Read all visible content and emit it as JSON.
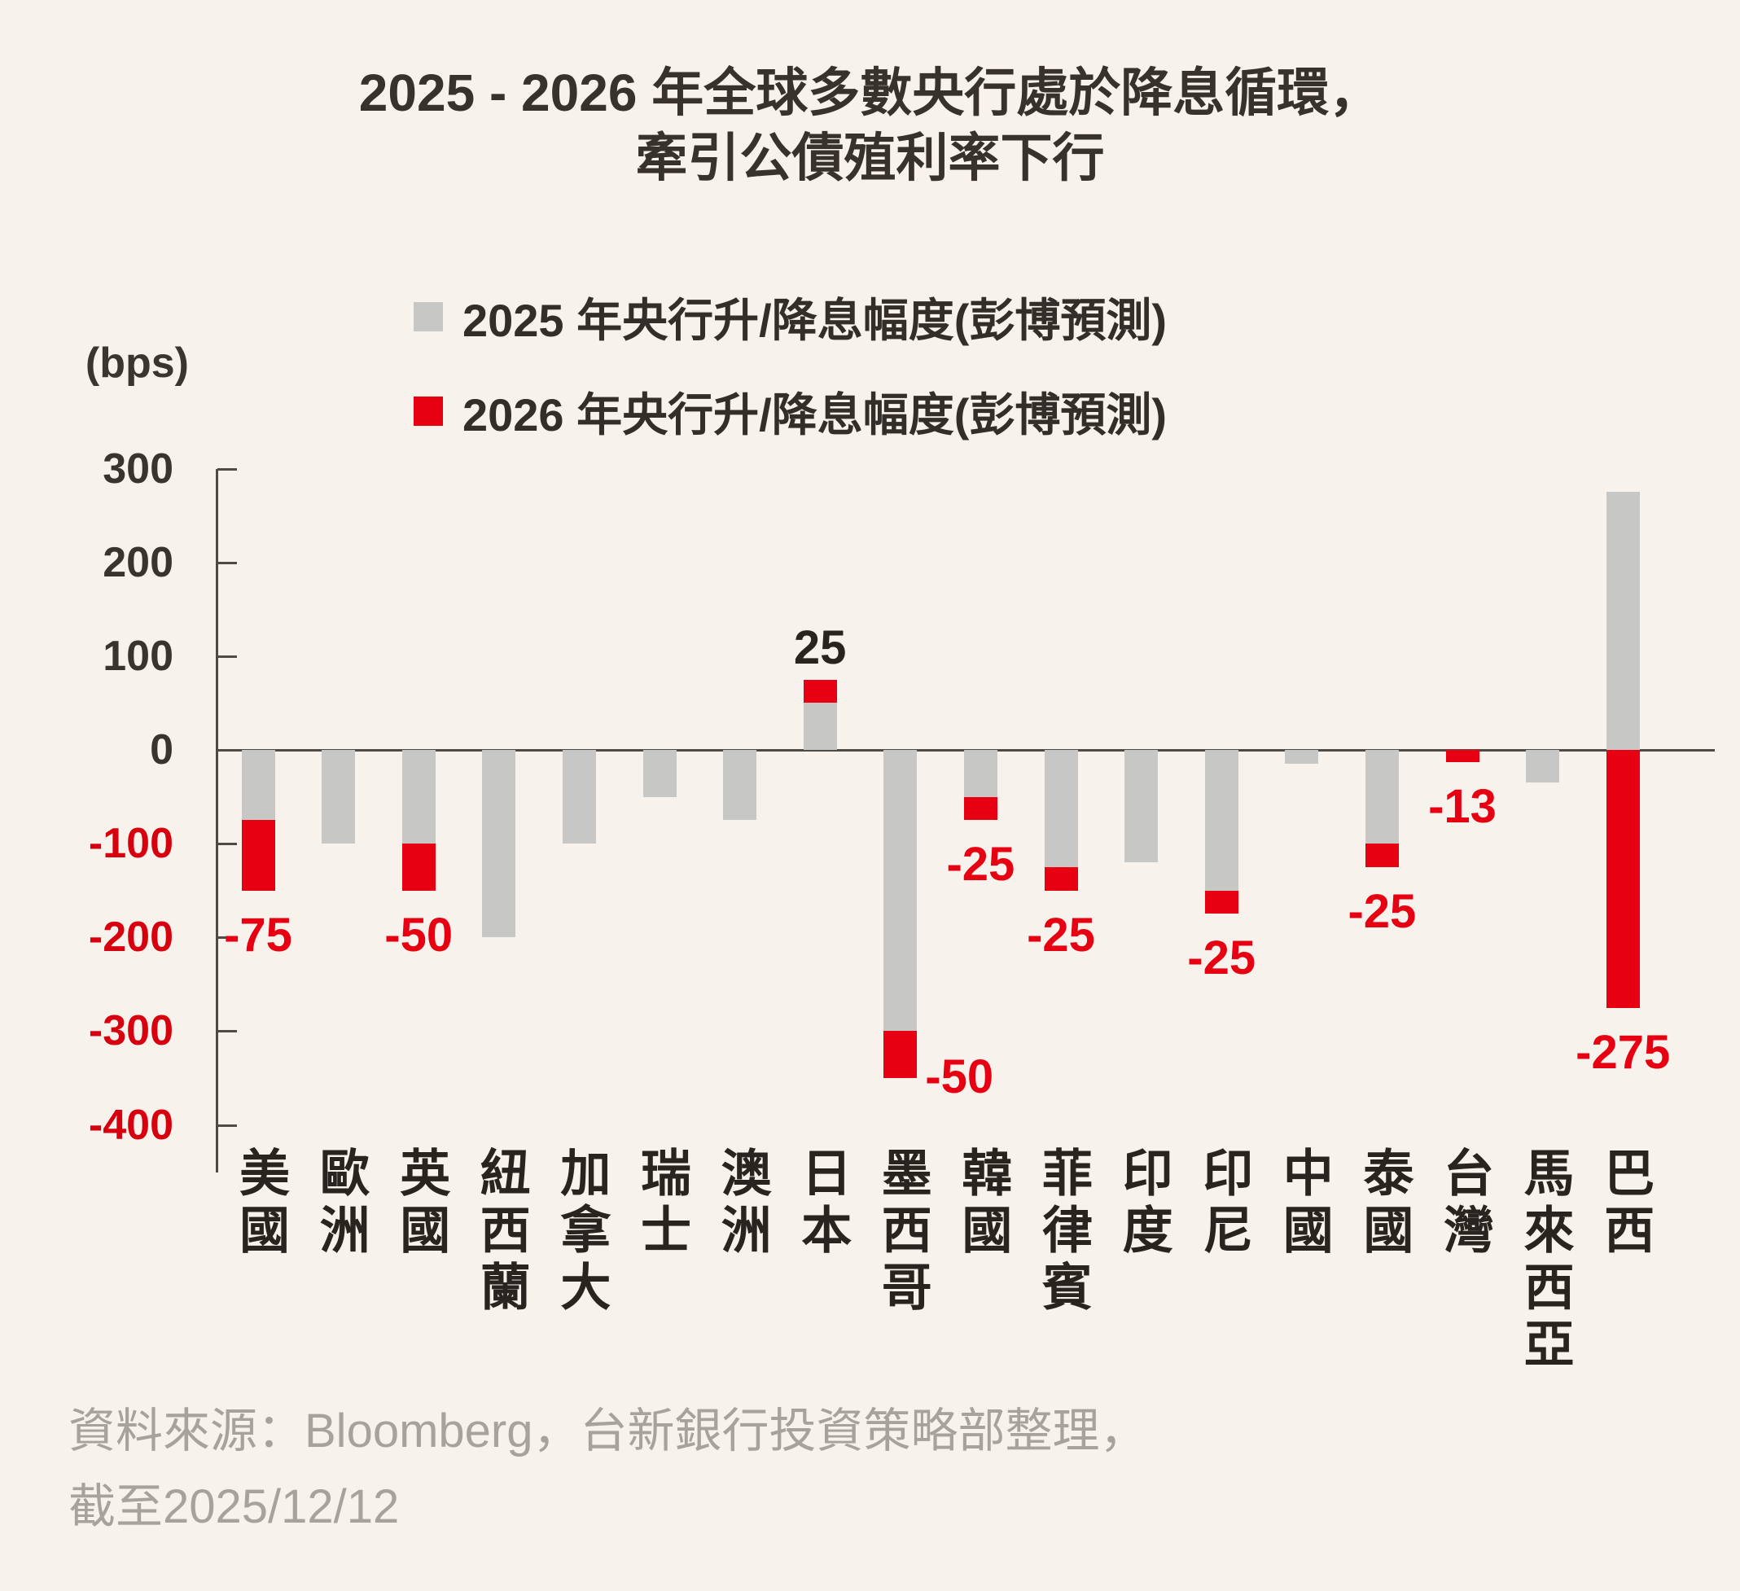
{
  "title": {
    "line1": "2025 - 2026 年全球多數央行處於降息循環，",
    "line2": "牽引公債殖利率下行"
  },
  "legend": {
    "item_2025": "2025 年央行升/降息幅度(彭博預測)",
    "item_2026": "2026 年央行升/降息幅度(彭博預測)"
  },
  "y_axis": {
    "unit_label": "(bps)",
    "ticks": [
      300,
      200,
      100,
      0,
      -100,
      -200,
      -300,
      -400
    ],
    "positive_label_color": "#3a3430",
    "negative_label_color": "#d7000f"
  },
  "colors": {
    "background": "#f8f2ec",
    "bar_2025_gray": "#c7c7c6",
    "bar_2026_red": "#e60012",
    "axis_line": "#4e4a46",
    "dark_text": "#38322d",
    "source_text": "#a7a29c"
  },
  "chart_data": {
    "type": "bar",
    "stacked": true,
    "grid": false,
    "legend_position": "top",
    "ylabel": "(bps)",
    "ylim": [
      -400,
      300
    ],
    "categories": [
      "美國",
      "歐洲",
      "英國",
      "紐西蘭",
      "加拿大",
      "瑞士",
      "澳洲",
      "日本",
      "墨西哥",
      "韓國",
      "菲律賓",
      "印度",
      "印尼",
      "中國",
      "泰國",
      "台灣",
      "馬來西亞",
      "巴西"
    ],
    "series": [
      {
        "name": "2025 年央行升/降息幅度(彭博預測)",
        "color": "#c7c7c6",
        "values": [
          -75,
          -100,
          -100,
          -200,
          -100,
          -50,
          -75,
          50,
          -300,
          -50,
          -125,
          -120,
          -150,
          -15,
          -100,
          0,
          -35,
          275
        ]
      },
      {
        "name": "2026 年央行升/降息幅度(彭博預測)",
        "color": "#e60012",
        "values": [
          -75,
          0,
          -50,
          0,
          0,
          0,
          0,
          25,
          -50,
          -25,
          -25,
          0,
          -25,
          0,
          -25,
          -13,
          0,
          -275
        ]
      }
    ],
    "data_labels": [
      {
        "index": 0,
        "text": "-75",
        "placement": "below",
        "color": "#e60012"
      },
      {
        "index": 2,
        "text": "-50",
        "placement": "below",
        "color": "#e60012"
      },
      {
        "index": 7,
        "text": "25",
        "placement": "above",
        "color": "#282420"
      },
      {
        "index": 8,
        "text": "-50",
        "placement": "right",
        "color": "#e60012"
      },
      {
        "index": 9,
        "text": "-25",
        "placement": "below",
        "color": "#e60012"
      },
      {
        "index": 10,
        "text": "-25",
        "placement": "below",
        "color": "#e60012"
      },
      {
        "index": 12,
        "text": "-25",
        "placement": "below",
        "color": "#e60012"
      },
      {
        "index": 14,
        "text": "-25",
        "placement": "below",
        "color": "#e60012"
      },
      {
        "index": 15,
        "text": "-13",
        "placement": "below",
        "color": "#e60012"
      },
      {
        "index": 17,
        "text": "-275",
        "placement": "below",
        "color": "#e60012"
      }
    ]
  },
  "source": {
    "line1": "資料來源：Bloomberg，台新銀行投資策略部整理，",
    "line2": "截至2025/12/12"
  }
}
